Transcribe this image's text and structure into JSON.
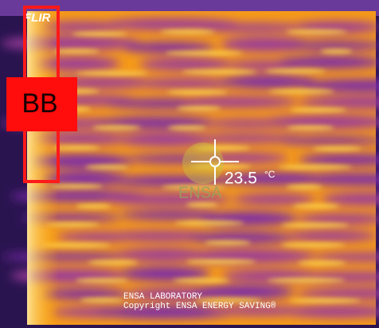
{
  "camera_brand": "FLIR",
  "marker_label": "BB",
  "temperature": {
    "value": "23.5",
    "unit": "°C"
  },
  "watermark": "ENSA",
  "footer": {
    "line1": "ENSA LABORATORY",
    "line2": "Copyright ENSA ENERGY SAVING®"
  }
}
